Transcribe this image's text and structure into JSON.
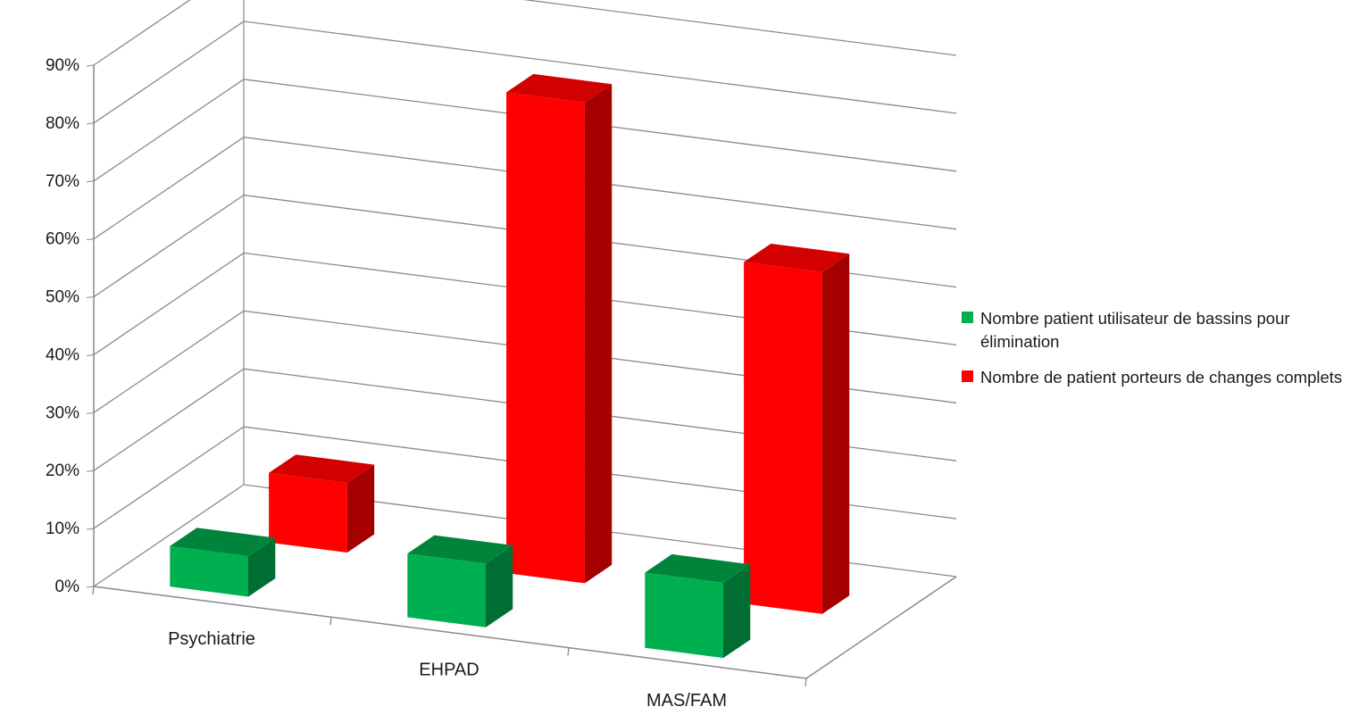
{
  "chart_data": {
    "type": "bar",
    "style": "3d-clustered-column",
    "categories": [
      "Psychiatrie",
      "EHPAD",
      "MAS/FAM"
    ],
    "series": [
      {
        "name": "Nombre patient utilisateur de bassins pour élimination",
        "values": [
          0.07,
          0.11,
          0.13
        ],
        "color": "#00B050",
        "side": "#006E32",
        "top": "#00843C"
      },
      {
        "name": "Nombre de patient porteurs de changes complets",
        "values": [
          0.12,
          0.83,
          0.59
        ],
        "color": "#FF0000",
        "side": "#A50000",
        "top": "#D20000"
      }
    ],
    "y_ticks": [
      "0%",
      "10%",
      "20%",
      "30%",
      "40%",
      "50%",
      "60%",
      "70%",
      "80%",
      "90%"
    ],
    "ylim": [
      0,
      0.9
    ],
    "grid": true,
    "legend_position": "right"
  }
}
